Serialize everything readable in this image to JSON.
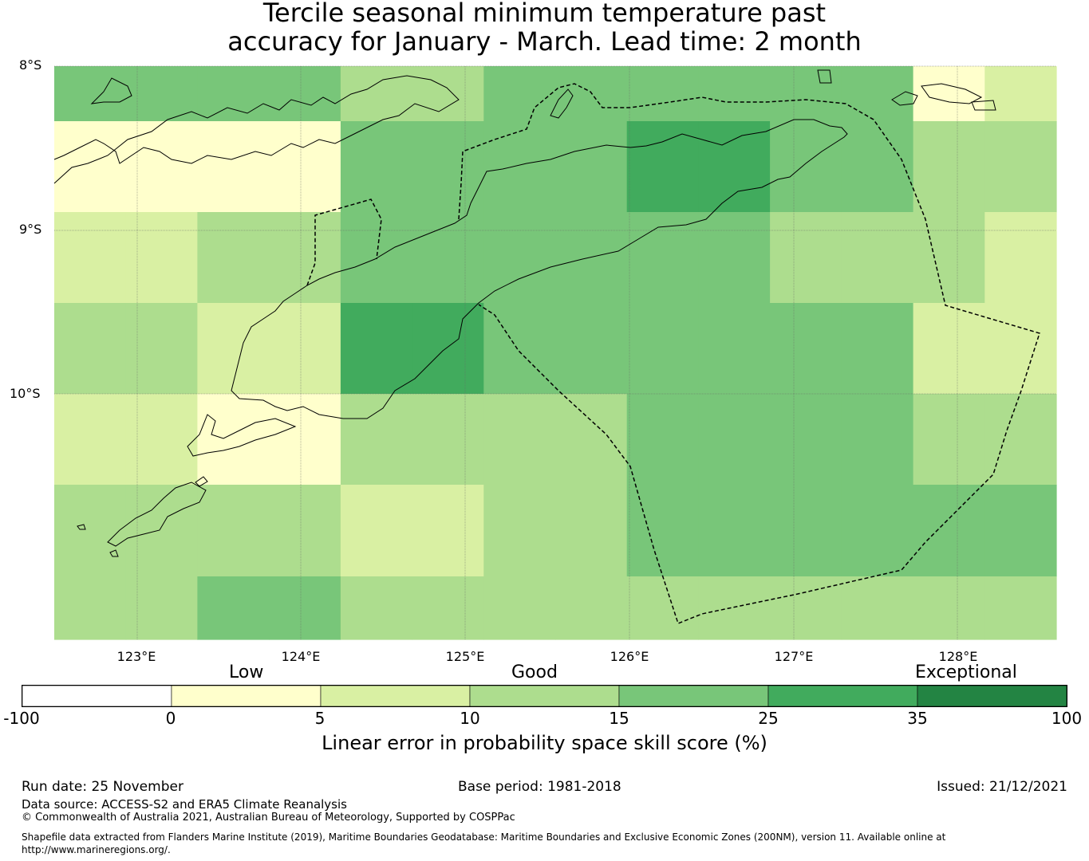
{
  "title": {
    "line1": "Tercile seasonal minimum temperature past",
    "line2": "accuracy for January - March. Lead time: 2 month"
  },
  "map": {
    "lat_labels": [
      "8°S",
      "9°S",
      "10°S"
    ],
    "lon_labels": [
      "123°E",
      "124°E",
      "125°E",
      "126°E",
      "127°E",
      "128°E"
    ],
    "grid_skill_classes": [
      [
        3,
        3,
        3,
        3,
        2,
        2,
        3,
        3,
        3,
        3,
        3,
        3,
        0,
        1
      ],
      [
        0,
        0,
        0,
        0,
        3,
        3,
        3,
        3,
        4,
        4,
        3,
        3,
        2,
        2
      ],
      [
        1,
        1,
        2,
        2,
        3,
        3,
        3,
        3,
        3,
        3,
        2,
        2,
        2,
        1
      ],
      [
        2,
        2,
        1,
        1,
        4,
        4,
        3,
        3,
        3,
        3,
        3,
        3,
        1,
        1
      ],
      [
        1,
        1,
        0,
        0,
        2,
        2,
        2,
        2,
        3,
        3,
        3,
        3,
        2,
        2
      ],
      [
        2,
        2,
        2,
        2,
        1,
        1,
        2,
        2,
        3,
        3,
        3,
        3,
        3,
        3
      ],
      [
        2,
        2,
        3,
        3,
        2,
        2,
        2,
        2,
        2,
        2,
        2,
        2,
        2,
        2
      ]
    ]
  },
  "colorbar": {
    "categories": [
      "Low",
      "Good",
      "Exceptional"
    ],
    "ticks": [
      "-100",
      "0",
      "5",
      "10",
      "15",
      "25",
      "35",
      "100"
    ],
    "colors": [
      "#ffffff",
      "#ffffcc",
      "#d9f0a3",
      "#addd8e",
      "#78c679",
      "#41ab5d",
      "#238443"
    ],
    "caption": "Linear error in probability space skill score (%)"
  },
  "footer": {
    "run_date": "Run date: 25 November",
    "base_period": "Base period: 1981-2018",
    "issued": "Issued: 21/12/2021",
    "data_source": "Data source: ACCESS-S2 and ERA5 Climate Reanalysis",
    "copyright": "© Commonwealth of Australia 2021, Australian Bureau of Meteorology, Supported by COSPPac",
    "shapefile_line1": "Shapefile data extracted from Flanders Marine Institute (2019), Maritime Boundaries Geodatabase: Maritime Boundaries and Exclusive Economic Zones (200NM), version 11. Available online at",
    "shapefile_line2": "http://www.marineregions.org/."
  }
}
